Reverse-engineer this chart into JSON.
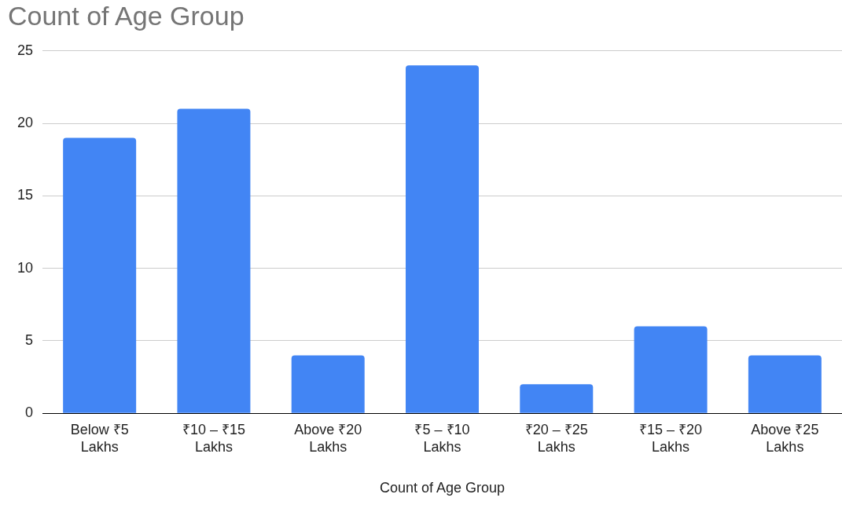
{
  "chart_data": {
    "type": "bar",
    "title": "Count of Age Group",
    "xlabel": "Count of Age Group",
    "categories": [
      "Below ₹5 Lakhs",
      "₹10 – ₹15 Lakhs",
      "Above ₹20 Lakhs",
      "₹5 – ₹10 Lakhs",
      "₹20 – ₹25 Lakhs",
      "₹15 – ₹20 Lakhs",
      "Above ₹25 Lakhs"
    ],
    "values": [
      19,
      21,
      4,
      24,
      2,
      6,
      4
    ],
    "color": "#4285f4",
    "ylim": [
      0,
      25
    ],
    "yticks": [
      0,
      5,
      10,
      15,
      20,
      25
    ],
    "grid": "y"
  }
}
